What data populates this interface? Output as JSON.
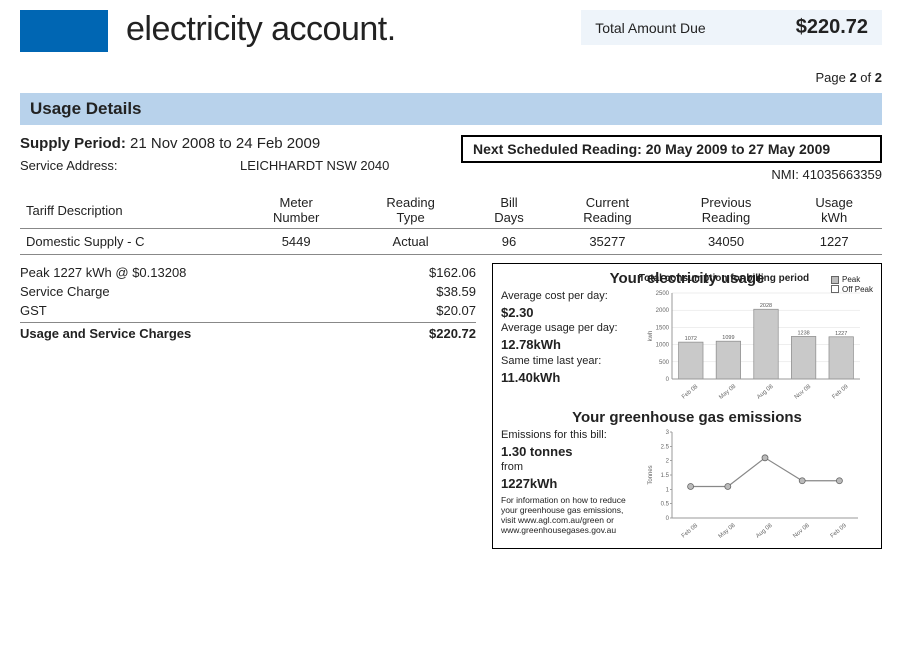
{
  "header": {
    "title": "electricity account.",
    "amount_due_label": "Total Amount Due",
    "amount_due_value": "$220.72",
    "page_label": "Page",
    "page_current": "2",
    "page_of": "of",
    "page_total": "2"
  },
  "section": {
    "usage_details": "Usage Details"
  },
  "supply": {
    "label": "Supply Period:",
    "value": "21 Nov 2008 to 24 Feb 2009",
    "next_reading_label": "Next Scheduled Reading:",
    "next_reading_value": "20 May 2009 to 27 May 2009",
    "nmi_label": "NMI:",
    "nmi_value": "41035663359",
    "service_address_label": "Service Address:",
    "service_address_value": "LEICHHARDT NSW 2040"
  },
  "readings_table": {
    "headers": {
      "tariff": "Tariff Description",
      "meter": "Meter\nNumber",
      "reading_type": "Reading\nType",
      "bill_days": "Bill\nDays",
      "current": "Current\nReading",
      "previous": "Previous\nReading",
      "usage": "Usage\nkWh"
    },
    "row": {
      "tariff": "Domestic Supply - C",
      "meter": "5449",
      "reading_type": "Actual",
      "bill_days": "96",
      "current": "35277",
      "previous": "34050",
      "usage": "1227"
    }
  },
  "charges": {
    "peak_label": "Peak 1227 kWh @ $0.13208",
    "peak_value": "$162.06",
    "service_label": "Service Charge",
    "service_value": "$38.59",
    "gst_label": "GST",
    "gst_value": "$20.07",
    "total_label": "Usage and Service Charges",
    "total_value": "$220.72"
  },
  "usage_panel": {
    "elec_title": "Your electricity usage",
    "elec_subtitle": "Total consumption for billing period",
    "avg_cost_label": "Average cost per day:",
    "avg_cost_value": "$2.30",
    "avg_usage_label": "Average usage per day:",
    "avg_usage_value": "12.78kWh",
    "same_time_label": "Same time last year:",
    "same_time_value": "11.40kWh",
    "legend_peak": "Peak",
    "legend_off": "Off Peak",
    "bar_chart": {
      "type": "bar",
      "categories": [
        "Feb 08",
        "May 08",
        "Aug 08",
        "Nov 08",
        "Feb 09"
      ],
      "values": [
        1072,
        1099,
        2028,
        1238,
        1227
      ],
      "ymax": 2500,
      "ytick_step": 500,
      "bar_color": "#c9c9c9",
      "border_color": "#8a8a8a",
      "label_fontsize": 7,
      "axis_color": "#999999",
      "grid_color": "#dddddd",
      "ylabel": "kwh"
    },
    "ghg_title": "Your greenhouse gas emissions",
    "emissions_label": "Emissions for this bill:",
    "emissions_value": "1.30 tonnes",
    "from_label": "from",
    "from_value": "1227kWh",
    "info_text": "For information on how to reduce your greenhouse gas emissions, visit www.agl.com.au/green or www.greenhousegases.gov.au",
    "line_chart": {
      "type": "line",
      "categories": [
        "Feb 08",
        "May 08",
        "Aug 08",
        "Nov 08",
        "Feb 09"
      ],
      "values": [
        1.1,
        1.1,
        2.1,
        1.3,
        1.3
      ],
      "ymax": 3,
      "ytick_step": 0.5,
      "line_color": "#888888",
      "marker_color": "#bbbbbb",
      "marker_border": "#666666",
      "axis_color": "#999999",
      "ylabel": "Tonnes"
    }
  },
  "colors": {
    "brand_blue": "#0066b3",
    "section_bar": "#b8d2eb",
    "amount_bg": "#eef4fa"
  }
}
